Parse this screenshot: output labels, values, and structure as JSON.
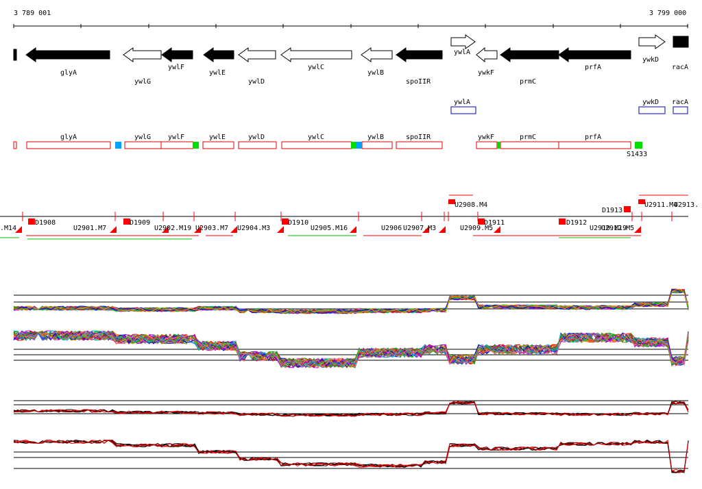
{
  "ruler": {
    "start": "3 789 001",
    "end": "3 799 000"
  },
  "genes": [
    {
      "name": "",
      "strand": "-"
    },
    {
      "name": "glyA",
      "strand": "-"
    },
    {
      "name": "ywlG",
      "strand": "-"
    },
    {
      "name": "ywlF",
      "strand": "-"
    },
    {
      "name": "ywlE",
      "strand": "-"
    },
    {
      "name": "ywlD",
      "strand": "-"
    },
    {
      "name": "ywlC",
      "strand": "-"
    },
    {
      "name": "ywlB",
      "strand": "-"
    },
    {
      "name": "spoIIR",
      "strand": "-"
    },
    {
      "name": "ywlA",
      "strand": "+"
    },
    {
      "name": "ywkF",
      "strand": "-"
    },
    {
      "name": "prmC",
      "strand": "-"
    },
    {
      "name": "prfA",
      "strand": "-"
    },
    {
      "name": "ywkD",
      "strand": "+"
    },
    {
      "name": "racA",
      "strand": "+"
    }
  ],
  "blue_boxes": [
    "ywlA",
    "ywkD",
    "racA"
  ],
  "transcripts": [
    "glyA",
    "ywlG",
    "ywlF",
    "ywlE",
    "ywlD",
    "ywlC",
    "ywlB",
    "spoIIR",
    "ywkF",
    "prmC",
    "prfA"
  ],
  "sigma_label": "S1433",
  "segments_top": [
    "U2908.M4",
    "D1913",
    "U2911.M4",
    "U2913."
  ],
  "segments_bottom": [
    ".M14",
    "D1908",
    "U2901.M7",
    "D1909",
    "U2902.M19",
    "U2903.M7",
    "U2904.M3",
    "D1910",
    "U2905.M16",
    "U2906",
    "U2907.M3",
    "U2909.M5",
    "D1911",
    "D1912",
    "U2910.M19",
    "U2912.M5"
  ],
  "colors": {
    "gene_fill": "#000000",
    "transcript_border": "#e00000",
    "blue_box": "#0000c8",
    "marker_green": "#00e000",
    "marker_blue": "#00a0ff",
    "segment_red": "#ff0000"
  },
  "panels": [
    "expression-panel-1",
    "expression-panel-2",
    "summary-panel-1",
    "summary-panel-2"
  ]
}
